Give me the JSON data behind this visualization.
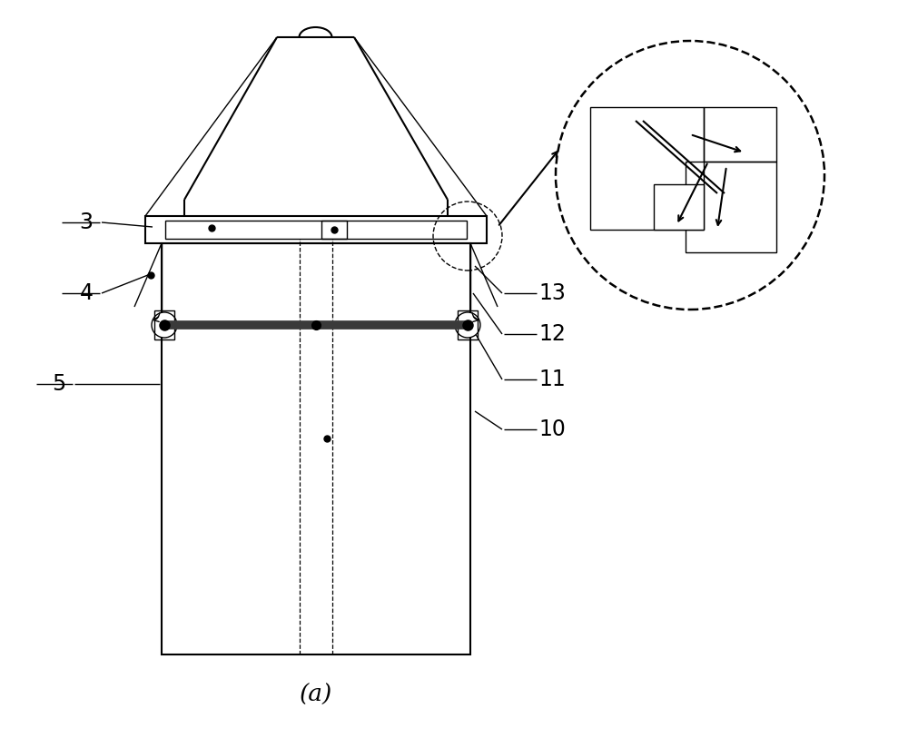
{
  "bg_color": "#ffffff",
  "line_color": "#000000",
  "dark_bar_color": "#3a3a3a",
  "label_3": "3",
  "label_4": "4",
  "label_5": "5",
  "label_10": "10",
  "label_11": "11",
  "label_12": "12",
  "label_13": "13",
  "caption": "(a)",
  "figsize": [
    10.0,
    8.13
  ]
}
